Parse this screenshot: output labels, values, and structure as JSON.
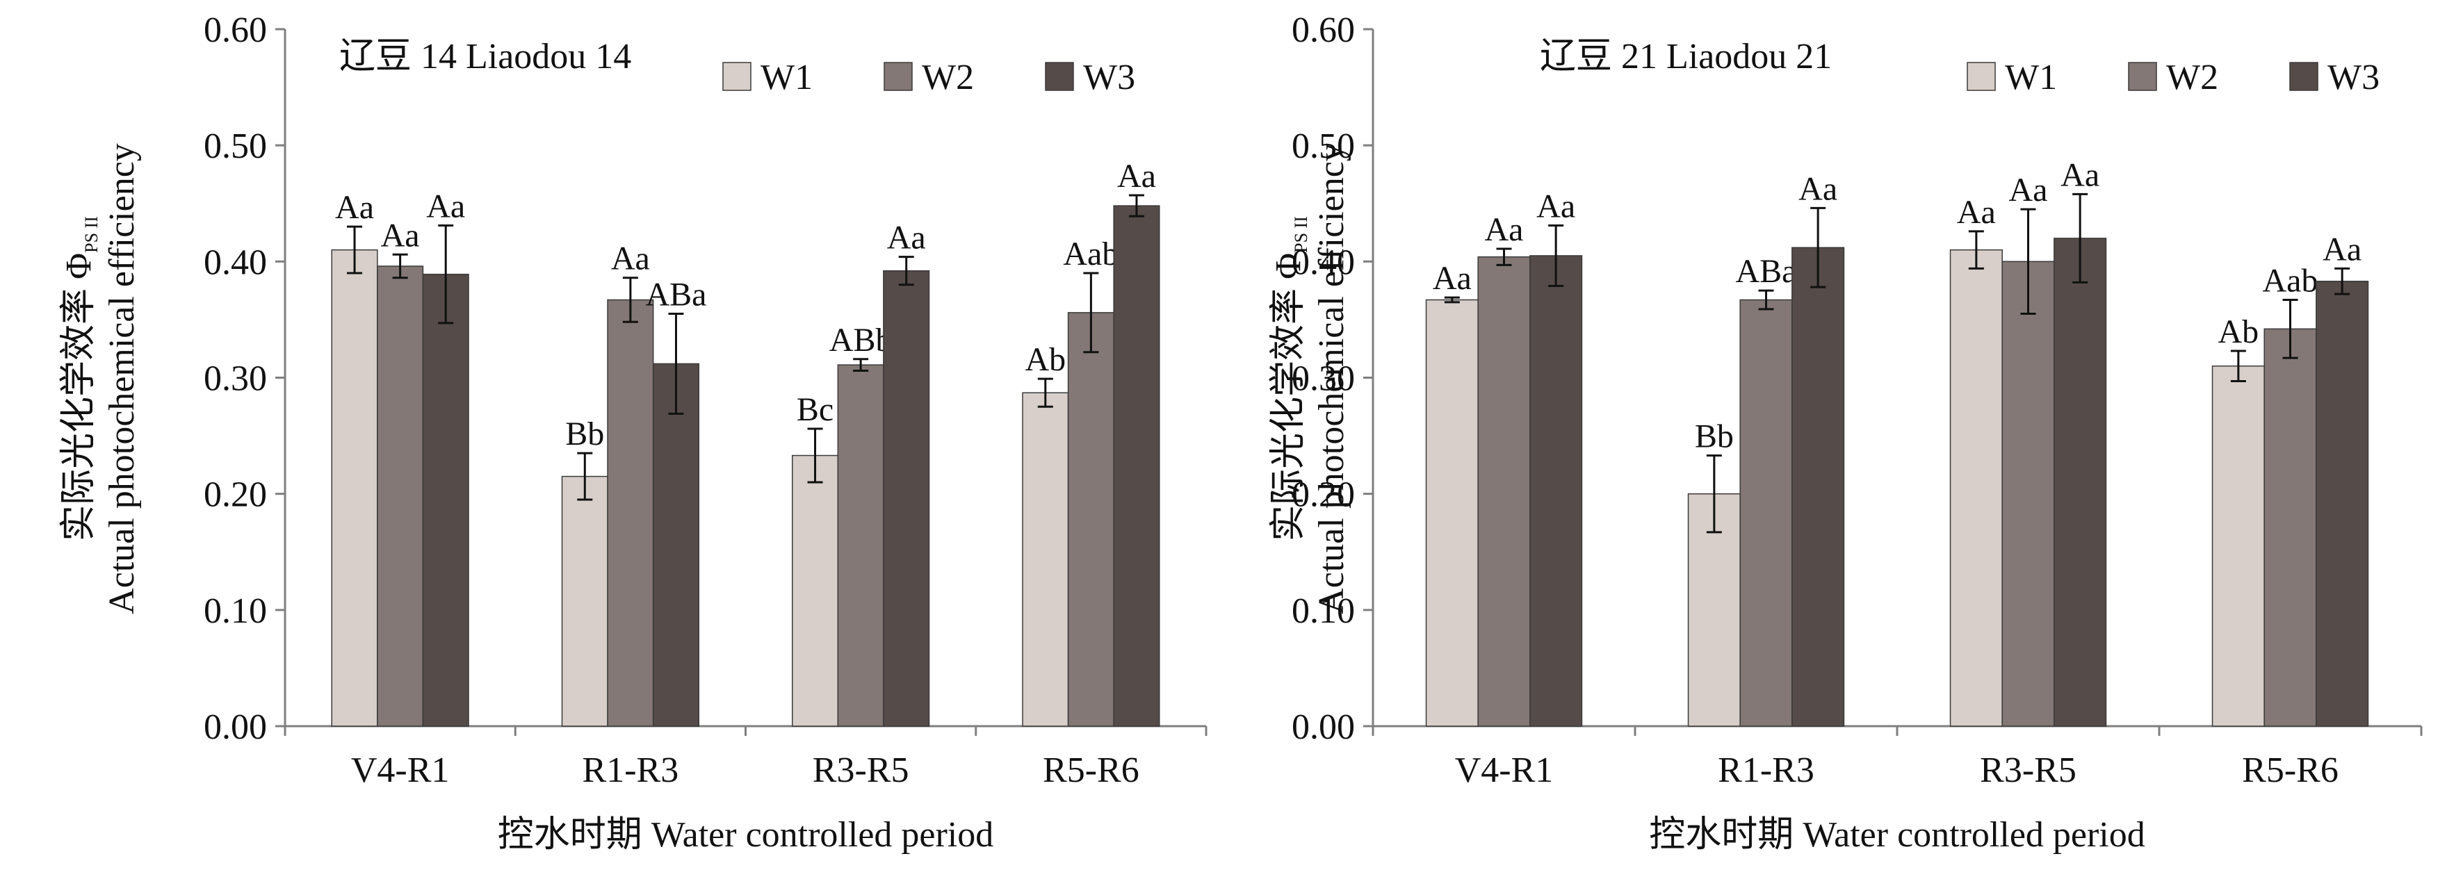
{
  "colors": {
    "W1": "#d8cfca",
    "W2": "#837875",
    "W3": "#554b48",
    "axis": "#7f7f7f",
    "text": "#111111"
  },
  "chart_data": [
    {
      "type": "bar",
      "title": "辽豆 14 Liaodou 14",
      "categories": [
        "V4-R1",
        "R1-R3",
        "R3-R5",
        "R5-R6"
      ],
      "xlabel": "控水时期 Water controlled period",
      "ylabel_cn": "实际光化学效率 Φ",
      "ylabel_sub": "PS II",
      "ylabel_en": "Actual photochemical efficiency",
      "ylim": [
        0,
        0.6
      ],
      "yticks": [
        "0.00",
        "0.10",
        "0.20",
        "0.30",
        "0.40",
        "0.50",
        "0.60"
      ],
      "legend_position": "top-right",
      "series": [
        {
          "name": "W1",
          "values": [
            0.41,
            0.215,
            0.233,
            0.287
          ],
          "errors": [
            0.02,
            0.02,
            0.023,
            0.012
          ],
          "labels": [
            "Aa",
            "Bb",
            "Bc",
            "Ab"
          ]
        },
        {
          "name": "W2",
          "values": [
            0.396,
            0.367,
            0.311,
            0.356
          ],
          "errors": [
            0.01,
            0.019,
            0.005,
            0.034
          ],
          "labels": [
            "Aa",
            "Aa",
            "ABb",
            "Aab"
          ]
        },
        {
          "name": "W3",
          "values": [
            0.389,
            0.312,
            0.392,
            0.448
          ],
          "errors": [
            0.042,
            0.043,
            0.012,
            0.009
          ],
          "labels": [
            "Aa",
            "ABa",
            "Aa",
            "Aa"
          ]
        }
      ]
    },
    {
      "type": "bar",
      "title": "辽豆 21 Liaodou 21",
      "categories": [
        "V4-R1",
        "R1-R3",
        "R3-R5",
        "R5-R6"
      ],
      "xlabel": "控水时期 Water controlled period",
      "ylabel_cn": "实际光化学效率 Φ",
      "ylabel_sub": "PS II",
      "ylabel_en": "Actual photochemical efficiency",
      "ylim": [
        0,
        0.6
      ],
      "yticks": [
        "0.00",
        "0.10",
        "0.20",
        "0.30",
        "0.40",
        "0.50",
        "0.60"
      ],
      "legend_position": "top-right",
      "series": [
        {
          "name": "W1",
          "values": [
            0.367,
            0.2,
            0.41,
            0.31
          ],
          "errors": [
            0.002,
            0.033,
            0.016,
            0.013
          ],
          "labels": [
            "Aa",
            "Bb",
            "Aa",
            "Ab"
          ]
        },
        {
          "name": "W2",
          "values": [
            0.404,
            0.367,
            0.4,
            0.342
          ],
          "errors": [
            0.007,
            0.008,
            0.045,
            0.025
          ],
          "labels": [
            "Aa",
            "ABa",
            "Aa",
            "Aab"
          ]
        },
        {
          "name": "W3",
          "values": [
            0.405,
            0.412,
            0.42,
            0.383
          ],
          "errors": [
            0.026,
            0.034,
            0.038,
            0.011
          ],
          "labels": [
            "Aa",
            "Aa",
            "Aa",
            "Aa"
          ]
        }
      ]
    }
  ]
}
